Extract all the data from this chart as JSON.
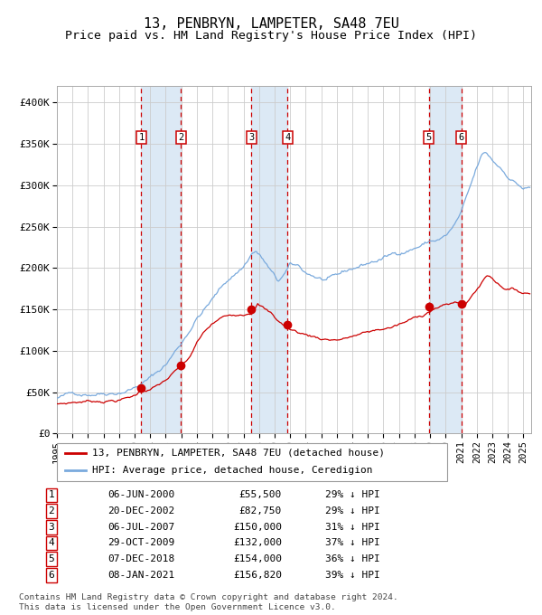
{
  "title": "13, PENBRYN, LAMPETER, SA48 7EU",
  "subtitle": "Price paid vs. HM Land Registry's House Price Index (HPI)",
  "title_fontsize": 11,
  "subtitle_fontsize": 9.5,
  "xlim_start": 1995.0,
  "xlim_end": 2025.5,
  "ylim_min": 0,
  "ylim_max": 420000,
  "yticks": [
    0,
    50000,
    100000,
    150000,
    200000,
    250000,
    300000,
    350000,
    400000
  ],
  "ytick_labels": [
    "£0",
    "£50K",
    "£100K",
    "£150K",
    "£200K",
    "£250K",
    "£300K",
    "£350K",
    "£400K"
  ],
  "xticks": [
    1995,
    1996,
    1997,
    1998,
    1999,
    2000,
    2001,
    2002,
    2003,
    2004,
    2005,
    2006,
    2007,
    2008,
    2009,
    2010,
    2011,
    2012,
    2013,
    2014,
    2015,
    2016,
    2017,
    2018,
    2019,
    2020,
    2021,
    2022,
    2023,
    2024,
    2025
  ],
  "sale_events": [
    {
      "num": 1,
      "date_dec": 2000.43,
      "price": 55500,
      "label": "06-JUN-2000",
      "price_str": "£55,500",
      "hpi_str": "29% ↓ HPI"
    },
    {
      "num": 2,
      "date_dec": 2002.97,
      "price": 82750,
      "label": "20-DEC-2002",
      "price_str": "£82,750",
      "hpi_str": "29% ↓ HPI"
    },
    {
      "num": 3,
      "date_dec": 2007.51,
      "price": 150000,
      "label": "06-JUL-2007",
      "price_str": "£150,000",
      "hpi_str": "31% ↓ HPI"
    },
    {
      "num": 4,
      "date_dec": 2009.83,
      "price": 132000,
      "label": "29-OCT-2009",
      "price_str": "£132,000",
      "hpi_str": "37% ↓ HPI"
    },
    {
      "num": 5,
      "date_dec": 2018.93,
      "price": 154000,
      "label": "07-DEC-2018",
      "price_str": "£154,000",
      "hpi_str": "36% ↓ HPI"
    },
    {
      "num": 6,
      "date_dec": 2021.02,
      "price": 156820,
      "label": "08-JAN-2021",
      "price_str": "£156,820",
      "hpi_str": "39% ↓ HPI"
    }
  ],
  "red_line_color": "#cc0000",
  "blue_line_color": "#7aaadd",
  "marker_color": "#cc0000",
  "vline_color": "#cc0000",
  "shade_color": "#dce9f5",
  "grid_color": "#cccccc",
  "bg_color": "#ffffff",
  "footnote1": "Contains HM Land Registry data © Crown copyright and database right 2024.",
  "footnote2": "This data is licensed under the Open Government Licence v3.0.",
  "legend1": "13, PENBRYN, LAMPETER, SA48 7EU (detached house)",
  "legend2": "HPI: Average price, detached house, Ceredigion",
  "hpi_anchors": [
    [
      1995.0,
      43000
    ],
    [
      1996.0,
      47000
    ],
    [
      1997.0,
      50000
    ],
    [
      1998.0,
      54000
    ],
    [
      1999.0,
      58000
    ],
    [
      2000.0,
      65000
    ],
    [
      2001.0,
      76000
    ],
    [
      2001.5,
      83000
    ],
    [
      2002.0,
      92000
    ],
    [
      2003.0,
      118000
    ],
    [
      2004.0,
      150000
    ],
    [
      2005.0,
      172000
    ],
    [
      2006.0,
      195000
    ],
    [
      2007.0,
      212000
    ],
    [
      2007.5,
      228000
    ],
    [
      2007.8,
      232000
    ],
    [
      2008.3,
      220000
    ],
    [
      2008.8,
      205000
    ],
    [
      2009.2,
      192000
    ],
    [
      2009.6,
      200000
    ],
    [
      2010.0,
      210000
    ],
    [
      2010.5,
      208000
    ],
    [
      2011.0,
      200000
    ],
    [
      2011.5,
      197000
    ],
    [
      2012.0,
      193000
    ],
    [
      2012.5,
      191000
    ],
    [
      2013.0,
      192000
    ],
    [
      2013.5,
      196000
    ],
    [
      2014.0,
      200000
    ],
    [
      2015.0,
      207000
    ],
    [
      2016.0,
      213000
    ],
    [
      2017.0,
      220000
    ],
    [
      2018.0,
      228000
    ],
    [
      2018.5,
      232000
    ],
    [
      2019.0,
      236000
    ],
    [
      2019.5,
      238000
    ],
    [
      2020.0,
      242000
    ],
    [
      2020.5,
      252000
    ],
    [
      2021.0,
      268000
    ],
    [
      2021.5,
      292000
    ],
    [
      2022.0,
      318000
    ],
    [
      2022.3,
      332000
    ],
    [
      2022.6,
      335000
    ],
    [
      2022.9,
      328000
    ],
    [
      2023.2,
      322000
    ],
    [
      2023.5,
      318000
    ],
    [
      2023.8,
      312000
    ],
    [
      2024.2,
      306000
    ],
    [
      2024.5,
      302000
    ],
    [
      2024.8,
      298000
    ],
    [
      2025.0,
      295000
    ]
  ],
  "prop_anchors": [
    [
      1995.0,
      36000
    ],
    [
      1995.5,
      37000
    ],
    [
      1996.0,
      38500
    ],
    [
      1996.5,
      39500
    ],
    [
      1997.0,
      40500
    ],
    [
      1997.5,
      41000
    ],
    [
      1998.0,
      42000
    ],
    [
      1998.5,
      43000
    ],
    [
      1999.0,
      44000
    ],
    [
      1999.5,
      46000
    ],
    [
      2000.0,
      49000
    ],
    [
      2000.43,
      55500
    ],
    [
      2000.8,
      57000
    ],
    [
      2001.0,
      58000
    ],
    [
      2001.5,
      62000
    ],
    [
      2002.0,
      68000
    ],
    [
      2002.5,
      76000
    ],
    [
      2002.97,
      82750
    ],
    [
      2003.2,
      86000
    ],
    [
      2003.5,
      92000
    ],
    [
      2004.0,
      110000
    ],
    [
      2004.5,
      123000
    ],
    [
      2005.0,
      132000
    ],
    [
      2005.5,
      138000
    ],
    [
      2006.0,
      141000
    ],
    [
      2006.5,
      144000
    ],
    [
      2007.0,
      146000
    ],
    [
      2007.3,
      149000
    ],
    [
      2007.51,
      150000
    ],
    [
      2007.7,
      156000
    ],
    [
      2007.9,
      162000
    ],
    [
      2008.2,
      158000
    ],
    [
      2008.5,
      153000
    ],
    [
      2008.8,
      149000
    ],
    [
      2009.0,
      144000
    ],
    [
      2009.4,
      138000
    ],
    [
      2009.83,
      132000
    ],
    [
      2010.0,
      130000
    ],
    [
      2010.3,
      128000
    ],
    [
      2010.6,
      126000
    ],
    [
      2011.0,
      124000
    ],
    [
      2011.5,
      122000
    ],
    [
      2012.0,
      120000
    ],
    [
      2012.5,
      119500
    ],
    [
      2013.0,
      120000
    ],
    [
      2013.5,
      121000
    ],
    [
      2014.0,
      124000
    ],
    [
      2014.5,
      126000
    ],
    [
      2015.0,
      128000
    ],
    [
      2015.5,
      130000
    ],
    [
      2016.0,
      132000
    ],
    [
      2016.5,
      134000
    ],
    [
      2017.0,
      137000
    ],
    [
      2017.5,
      140000
    ],
    [
      2018.0,
      144000
    ],
    [
      2018.5,
      148000
    ],
    [
      2018.93,
      154000
    ],
    [
      2019.2,
      157000
    ],
    [
      2019.5,
      159000
    ],
    [
      2019.8,
      160000
    ],
    [
      2020.0,
      161000
    ],
    [
      2020.5,
      163000
    ],
    [
      2021.0,
      165000
    ],
    [
      2021.02,
      156820
    ],
    [
      2021.3,
      162000
    ],
    [
      2021.6,
      170000
    ],
    [
      2022.0,
      180000
    ],
    [
      2022.3,
      188000
    ],
    [
      2022.5,
      194000
    ],
    [
      2022.7,
      198000
    ],
    [
      2022.9,
      197000
    ],
    [
      2023.1,
      194000
    ],
    [
      2023.3,
      190000
    ],
    [
      2023.6,
      187000
    ],
    [
      2023.9,
      184000
    ],
    [
      2024.2,
      183000
    ],
    [
      2024.5,
      182000
    ],
    [
      2024.8,
      180000
    ],
    [
      2025.0,
      179000
    ]
  ]
}
